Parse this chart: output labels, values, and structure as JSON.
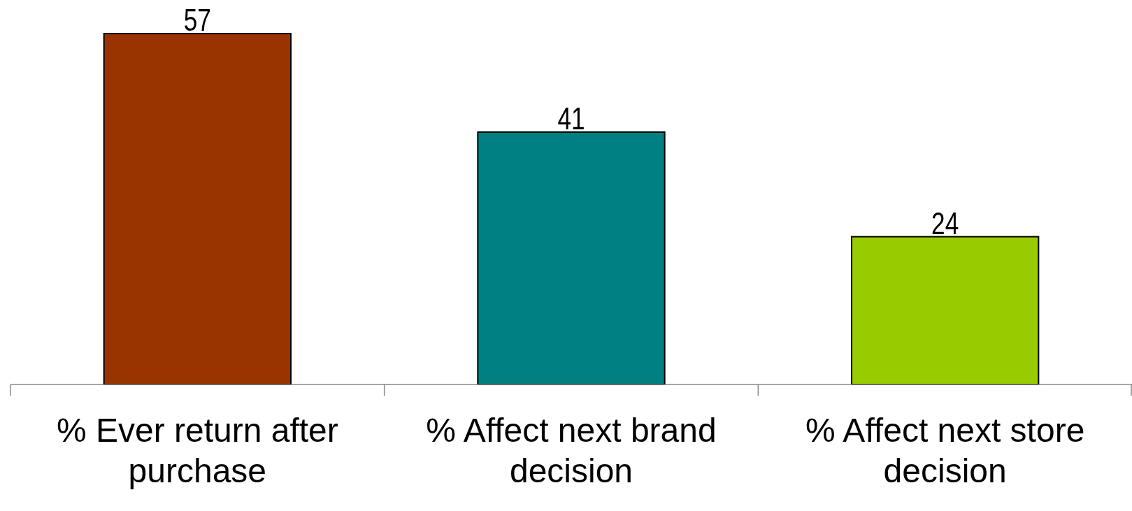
{
  "chart_data": {
    "type": "bar",
    "categories": [
      "% Ever return after purchase",
      "% Affect next brand decision",
      "% Affect next store decision"
    ],
    "values": [
      57,
      41,
      24
    ],
    "colors": [
      "#993300",
      "#008080",
      "#99cc00"
    ],
    "data_labels": true
  }
}
